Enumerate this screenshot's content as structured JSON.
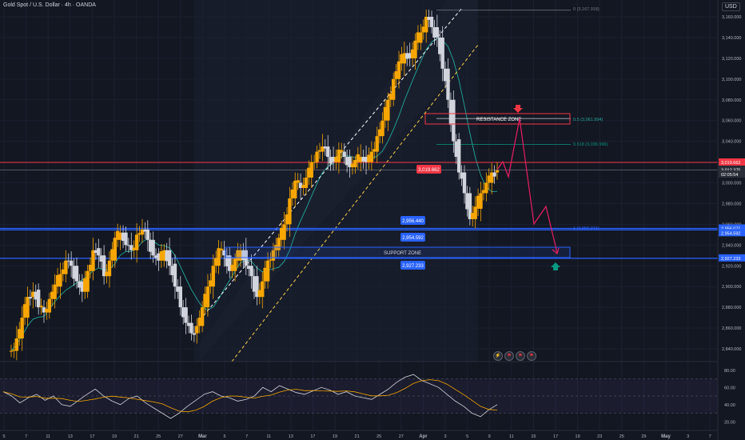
{
  "header": {
    "title": "Gold Spot / U.S. Dollar · 4h · OANDA",
    "currency": "USD"
  },
  "price_axis": {
    "ticks": [
      "3,160.000",
      "3,140.000",
      "3,120.000",
      "3,100.000",
      "3,080.000",
      "3,060.000",
      "3,040.000",
      "3,020.000",
      "3,000.000",
      "2,980.000",
      "2,960.000",
      "2,940.000",
      "2,920.000",
      "2,900.000",
      "2,880.000",
      "2,860.000",
      "2,840.000"
    ],
    "price_labels": [
      {
        "text": "3,019.662",
        "value": 3019.662,
        "color": "#f23645"
      },
      {
        "text": "3,012.375",
        "value": 3012.375,
        "color": "#2a2e39"
      },
      {
        "text": "02:05:54",
        "value": 3008.0,
        "color": "#2a2e39"
      },
      {
        "text": "2,956.071",
        "value": 2956.071,
        "color": "#2962ff"
      },
      {
        "text": "2,954.592",
        "value": 2951.5,
        "color": "#2962ff"
      },
      {
        "text": "2,927.233",
        "value": 2927.233,
        "color": "#2962ff"
      }
    ]
  },
  "rsi_axis": {
    "ticks": [
      "80.00",
      "60.00",
      "40.00",
      "20.00"
    ],
    "values": [
      80,
      60,
      40,
      20
    ]
  },
  "time_axis": {
    "labels": [
      "5",
      "7",
      "11",
      "13",
      "17",
      "19",
      "21",
      "25",
      "27",
      "Mar",
      "5",
      "7",
      "11",
      "13",
      "17",
      "19",
      "21",
      "25",
      "27",
      "Apr",
      "3",
      "5",
      "9",
      "11",
      "15",
      "17",
      "19",
      "23",
      "25",
      "29",
      "May",
      "3",
      "7"
    ]
  },
  "annotations": {
    "resistance": "RESISTANCE ZONE",
    "support": "SUPPORT ZONE",
    "fib0": "0 (3,167.918)",
    "fib05": "0.5 (3,061.994)",
    "fib0618": "0.618 (3,036.996)",
    "fib1": "1 (2,956.071)",
    "tag_red": "3,019.662",
    "tag_a": "2,956.440",
    "tag_b": "2,954.592",
    "tag_c": "2,927.233"
  },
  "colors": {
    "bull": "#f7a600",
    "bear": "#d1d4dc",
    "resistance": "#f23645",
    "support": "#2962ff",
    "ma": "#1fa99a",
    "rsi": "#d1d4dc",
    "rsi_ma": "#f7a600",
    "projection": "#e91e63"
  },
  "chart_data": {
    "type": "candlestick",
    "symbol": "Gold Spot / U.S. Dollar",
    "interval": "4h",
    "current_price": 3012.375,
    "key_levels": [
      3167.918,
      3061.994,
      3036.996,
      3019.662,
      2956.071,
      2954.592,
      2927.233
    ],
    "close_path": [
      2838,
      2850,
      2870,
      2890,
      2895,
      2880,
      2875,
      2888,
      2900,
      2912,
      2925,
      2920,
      2905,
      2895,
      2915,
      2935,
      2930,
      2910,
      2925,
      2945,
      2952,
      2940,
      2935,
      2950,
      2955,
      2945,
      2930,
      2925,
      2935,
      2920,
      2900,
      2880,
      2865,
      2855,
      2862,
      2880,
      2900,
      2920,
      2935,
      2930,
      2915,
      2925,
      2935,
      2920,
      2910,
      2890,
      2905,
      2925,
      2935,
      2945,
      2960,
      2985,
      3000,
      2995,
      3005,
      3020,
      3030,
      3035,
      3025,
      3020,
      3030,
      3025,
      3015,
      3020,
      3025,
      3020,
      3030,
      3045,
      3060,
      3080,
      3100,
      3115,
      3125,
      3120,
      3135,
      3145,
      3160,
      3150,
      3140,
      3110,
      3080,
      3040,
      3010,
      2990,
      2965,
      2975,
      2990,
      3000,
      3010,
      3012
    ],
    "rsi_path": [
      55,
      50,
      42,
      48,
      52,
      45,
      50,
      40,
      38,
      45,
      52,
      58,
      50,
      44,
      40,
      47,
      50,
      42,
      36,
      30,
      24,
      30,
      38,
      45,
      52,
      55,
      50,
      48,
      44,
      46,
      50,
      60,
      55,
      62,
      58,
      54,
      52,
      56,
      60,
      57,
      52,
      55,
      50,
      48,
      46,
      52,
      58,
      66,
      72,
      75,
      68,
      64,
      60,
      52,
      44,
      38,
      30,
      26,
      34,
      40
    ]
  }
}
